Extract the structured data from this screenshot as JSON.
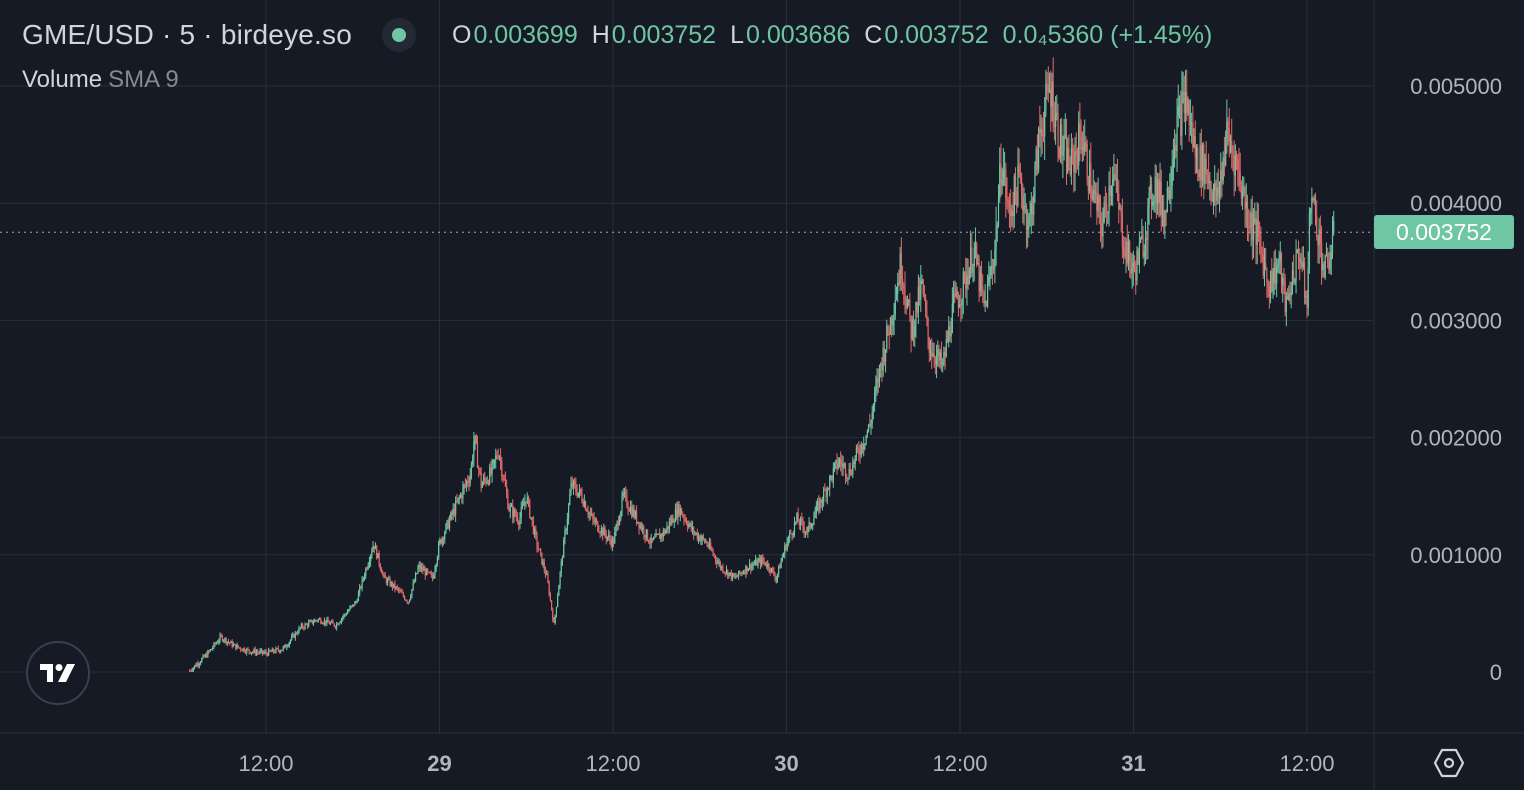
{
  "header": {
    "symbol": "GME/USD · 5 · birdeye.so",
    "ohlc": {
      "o_label": "O",
      "o_value": "0.003699",
      "h_label": "H",
      "h_value": "0.003752",
      "l_label": "L",
      "l_value": "0.003686",
      "c_label": "C",
      "c_value": "0.003752",
      "change": "0.0₄5360 (+1.45%)"
    }
  },
  "indicator": {
    "name": "Volume",
    "param": "SMA 9"
  },
  "last_price_label": "0.003752",
  "colors": {
    "background": "#161a25",
    "grid": "#2a2e39",
    "up": "#6fc6a3",
    "down": "#e26b6b",
    "text": "#d1d4dc",
    "axis_text": "#b2b5be"
  },
  "icons": {
    "logo": "tradingview-logo-icon",
    "settings": "settings-hexagon-icon"
  },
  "chart_data": {
    "type": "candlestick",
    "y_ticks": [
      "0.005000",
      "0.004000",
      "0.003000",
      "0.002000",
      "0.001000",
      "0"
    ],
    "y_range": [
      0,
      0.005
    ],
    "x_ticks": [
      {
        "label": "12:00",
        "t": 0.5,
        "bold": false
      },
      {
        "label": "29",
        "t": 1.0,
        "bold": true
      },
      {
        "label": "12:00",
        "t": 1.5,
        "bold": false
      },
      {
        "label": "30",
        "t": 2.0,
        "bold": true
      },
      {
        "label": "12:00",
        "t": 2.5,
        "bold": false
      },
      {
        "label": "31",
        "t": 3.0,
        "bold": true
      },
      {
        "label": "12:00",
        "t": 3.5,
        "bold": false
      }
    ],
    "x_range_days": [
      -0.77,
      2.76
    ],
    "last_price": 0.003752,
    "price_path": [
      [
        0.28,
        1e-05
      ],
      [
        0.33,
        0.00015
      ],
      [
        0.37,
        0.0003
      ],
      [
        0.41,
        0.00022
      ],
      [
        0.45,
        0.00018
      ],
      [
        0.5,
        0.00016
      ],
      [
        0.55,
        0.0002
      ],
      [
        0.6,
        0.00038
      ],
      [
        0.65,
        0.00045
      ],
      [
        0.7,
        0.0004
      ],
      [
        0.76,
        0.0006
      ],
      [
        0.79,
        0.0009
      ],
      [
        0.81,
        0.0011
      ],
      [
        0.84,
        0.0008
      ],
      [
        0.88,
        0.0007
      ],
      [
        0.91,
        0.0006
      ],
      [
        0.94,
        0.0009
      ],
      [
        0.98,
        0.0008
      ],
      [
        1.0,
        0.0011
      ],
      [
        1.03,
        0.0013
      ],
      [
        1.06,
        0.0015
      ],
      [
        1.09,
        0.0017
      ],
      [
        1.1,
        0.002
      ],
      [
        1.12,
        0.0016
      ],
      [
        1.15,
        0.0017
      ],
      [
        1.17,
        0.0019
      ],
      [
        1.2,
        0.0014
      ],
      [
        1.23,
        0.0013
      ],
      [
        1.25,
        0.0015
      ],
      [
        1.28,
        0.0011
      ],
      [
        1.31,
        0.0008
      ],
      [
        1.33,
        0.0004
      ],
      [
        1.35,
        0.0009
      ],
      [
        1.38,
        0.0016
      ],
      [
        1.41,
        0.0015
      ],
      [
        1.44,
        0.0013
      ],
      [
        1.47,
        0.0012
      ],
      [
        1.5,
        0.0011
      ],
      [
        1.53,
        0.0015
      ],
      [
        1.57,
        0.0013
      ],
      [
        1.61,
        0.0011
      ],
      [
        1.65,
        0.0012
      ],
      [
        1.69,
        0.0014
      ],
      [
        1.73,
        0.0012
      ],
      [
        1.77,
        0.0011
      ],
      [
        1.81,
        0.0009
      ],
      [
        1.85,
        0.0008
      ],
      [
        1.89,
        0.0009
      ],
      [
        1.93,
        0.00095
      ],
      [
        1.95,
        0.0009
      ],
      [
        1.97,
        0.0008
      ],
      [
        2.0,
        0.0011
      ],
      [
        2.03,
        0.0013
      ],
      [
        2.06,
        0.0012
      ],
      [
        2.09,
        0.0014
      ],
      [
        2.12,
        0.0016
      ],
      [
        2.15,
        0.0018
      ],
      [
        2.18,
        0.0017
      ],
      [
        2.21,
        0.0019
      ],
      [
        2.24,
        0.0021
      ],
      [
        2.27,
        0.0026
      ],
      [
        2.3,
        0.003
      ],
      [
        2.33,
        0.0035
      ],
      [
        2.36,
        0.0029
      ],
      [
        2.39,
        0.0033
      ],
      [
        2.41,
        0.0028
      ],
      [
        2.45,
        0.0026
      ],
      [
        2.48,
        0.0031
      ],
      [
        2.51,
        0.0033
      ],
      [
        2.54,
        0.0036
      ],
      [
        2.57,
        0.0031
      ],
      [
        2.6,
        0.0036
      ],
      [
        2.62,
        0.0044
      ],
      [
        2.64,
        0.0039
      ],
      [
        2.67,
        0.0042
      ],
      [
        2.7,
        0.0038
      ],
      [
        2.73,
        0.0046
      ],
      [
        2.76,
        0.005
      ],
      [
        2.79,
        0.0045
      ],
      [
        2.82,
        0.0043
      ],
      [
        2.85,
        0.0046
      ],
      [
        2.88,
        0.0041
      ],
      [
        2.91,
        0.0038
      ],
      [
        2.94,
        0.0043
      ],
      [
        2.97,
        0.0037
      ],
      [
        3.0,
        0.0034
      ],
      [
        3.03,
        0.0037
      ],
      [
        3.06,
        0.0042
      ],
      [
        3.09,
        0.0039
      ],
      [
        3.12,
        0.0046
      ],
      [
        3.15,
        0.0049
      ],
      [
        3.18,
        0.0044
      ],
      [
        3.21,
        0.0043
      ],
      [
        3.24,
        0.004
      ],
      [
        3.27,
        0.0046
      ],
      [
        3.3,
        0.0043
      ],
      [
        3.33,
        0.0039
      ],
      [
        3.36,
        0.0037
      ],
      [
        3.39,
        0.0033
      ],
      [
        3.42,
        0.0035
      ],
      [
        3.44,
        0.0031
      ],
      [
        3.46,
        0.0034
      ],
      [
        3.48,
        0.0036
      ],
      [
        3.5,
        0.0031
      ],
      [
        3.51,
        0.0041
      ],
      [
        3.53,
        0.0038
      ],
      [
        3.55,
        0.0034
      ],
      [
        3.57,
        0.0036
      ],
      [
        3.58,
        0.003752
      ]
    ]
  }
}
